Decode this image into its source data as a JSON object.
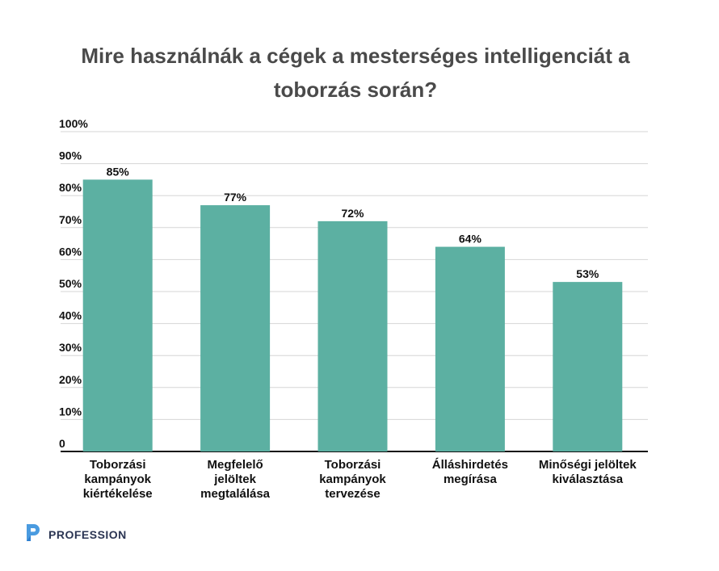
{
  "chart_data": {
    "type": "bar",
    "title": "Mire használnák a cégek a mesterséges intelligenciát a toborzás során?",
    "categories": [
      [
        "Toborzási",
        "kampányok",
        "kiértékelése"
      ],
      [
        "Megfelelő",
        "jelöltek",
        "megtalálása"
      ],
      [
        "Toborzási",
        "kampányok",
        "tervezése"
      ],
      [
        "Álláshirdetés",
        "megírása"
      ],
      [
        "Minőségi jelöltek",
        "kiválasztása"
      ]
    ],
    "values": [
      85,
      77,
      72,
      64,
      53
    ],
    "data_labels": [
      "85%",
      "77%",
      "72%",
      "64%",
      "53%"
    ],
    "ylim": [
      0,
      100
    ],
    "yticks": [
      0,
      10,
      20,
      30,
      40,
      50,
      60,
      70,
      80,
      90,
      100
    ],
    "ytick_labels": [
      "0",
      "10%",
      "20%",
      "30%",
      "40%",
      "50%",
      "60%",
      "70%",
      "80%",
      "90%",
      "100%"
    ],
    "grid": true,
    "bar_color": "#5cb0a2"
  },
  "logo": {
    "text": "PROFESSION",
    "icon": "profession-p-logo-icon",
    "color": "#4a9be0"
  }
}
